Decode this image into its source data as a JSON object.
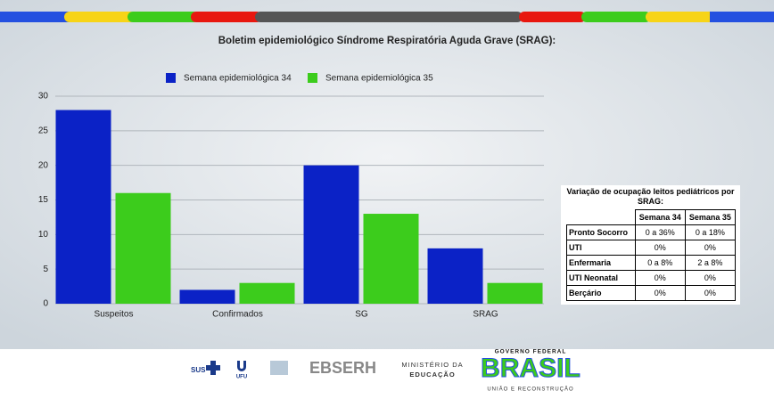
{
  "chart_data": {
    "type": "bar",
    "title": "Boletim epidemiológico Síndrome Respiratória Aguda Grave (SRAG):",
    "categories": [
      "Suspeitos",
      "Confirmados",
      "SG",
      "SRAG"
    ],
    "series": [
      {
        "name": "Semana epidemiológica 34",
        "color": "#0b22c6",
        "values": [
          28,
          2,
          20,
          8
        ]
      },
      {
        "name": "Semana epidemiológica 35",
        "color": "#3ccc1c",
        "values": [
          16,
          3,
          13,
          3
        ]
      }
    ],
    "ylim": [
      0,
      30
    ],
    "yticks": [
      0,
      5,
      10,
      15,
      20,
      25,
      30
    ],
    "grid": true,
    "legend": "top"
  },
  "table": {
    "title": "Variação de ocupação leitos pediátricos por SRAG:",
    "header": [
      "Semana 34",
      "Semana 35"
    ],
    "rows": [
      [
        "Pronto Socorro",
        "0 a 36%",
        "0 a 18%"
      ],
      [
        "UTI",
        "0%",
        "0%"
      ],
      [
        "Enfermaria",
        "0 a 8%",
        "2 a 8%"
      ],
      [
        "UTI Neonatal",
        "0%",
        "0%"
      ],
      [
        "Berçário",
        "0%",
        "0%"
      ]
    ]
  },
  "footer": {
    "sus": "SUS",
    "ufu": "UFU",
    "ebserh": "EBSERH",
    "ministry": [
      "MINISTÉRIO DA",
      "EDUCAÇÃO"
    ],
    "government": "GOVERNO FEDERAL",
    "brasil": "BRASIL",
    "motto": "UNIÃO E RECONSTRUÇÃO"
  }
}
